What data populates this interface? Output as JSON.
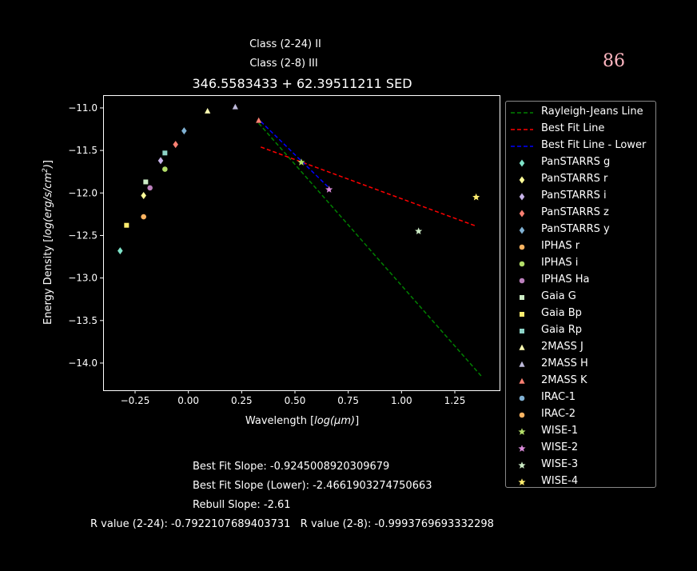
{
  "header": {
    "class_24": "Class (2-24) II",
    "class_28": "Class (2-8) III",
    "title": "346.5583433 + 62.39511211 SED",
    "badge": "86"
  },
  "footer": {
    "best_fit_slope": "Best Fit Slope: -0.9245008920309679",
    "best_fit_slope_lower": "Best Fit Slope (Lower): -2.4661903274750663",
    "rebull_slope": "Rebull Slope: -2.61",
    "r_values": "R value (2-24): -0.7922107689403731   R value (2-8): -0.9993769693332298"
  },
  "chart_data": {
    "type": "scatter",
    "xlabel": "Wavelength [log(μm)]",
    "ylabel": "Energy Density [log(erg/s/cm²)]",
    "xlim": [
      -0.4,
      1.46
    ],
    "ylim": [
      -14.32,
      -10.85
    ],
    "xticks": [
      -0.25,
      0.0,
      0.25,
      0.5,
      0.75,
      1.0,
      1.25
    ],
    "xtick_labels": [
      "−0.25",
      "0.00",
      "0.25",
      "0.50",
      "0.75",
      "1.00",
      "1.25"
    ],
    "yticks": [
      -11.0,
      -11.5,
      -12.0,
      -12.5,
      -13.0,
      -13.5,
      -14.0
    ],
    "ytick_labels": [
      "−11.0",
      "−11.5",
      "−12.0",
      "−12.5",
      "−13.0",
      "−13.5",
      "−14.0"
    ],
    "grid": false,
    "legend_position": "outside-right",
    "lines": [
      {
        "name": "Rayleigh-Jeans Line",
        "color": "#008000",
        "dash": true,
        "x": [
          0.33,
          1.38
        ],
        "y": [
          -11.18,
          -14.17
        ]
      },
      {
        "name": "Best Fit Line",
        "color": "#ff0000",
        "dash": true,
        "x": [
          0.34,
          1.35
        ],
        "y": [
          -11.46,
          -12.39
        ]
      },
      {
        "name": "Best Fit Line - Lower",
        "color": "#0000ff",
        "dash": true,
        "x": [
          0.34,
          0.66
        ],
        "y": [
          -11.16,
          -11.94
        ]
      }
    ],
    "series": [
      {
        "name": "PanSTARRS g",
        "color": "#7fe3c9",
        "marker": "diamond",
        "x": [
          -0.32
        ],
        "y": [
          -12.68
        ]
      },
      {
        "name": "PanSTARRS r",
        "color": "#ffff99",
        "marker": "diamond",
        "x": [
          -0.21
        ],
        "y": [
          -12.03
        ]
      },
      {
        "name": "PanSTARRS i",
        "color": "#c7b3e8",
        "marker": "diamond",
        "x": [
          -0.13
        ],
        "y": [
          -11.62
        ]
      },
      {
        "name": "PanSTARRS z",
        "color": "#fb8072",
        "marker": "diamond",
        "x": [
          -0.06
        ],
        "y": [
          -11.43
        ]
      },
      {
        "name": "PanSTARRS y",
        "color": "#80b1d3",
        "marker": "diamond",
        "x": [
          -0.02
        ],
        "y": [
          -11.27
        ]
      },
      {
        "name": "IPHAS r",
        "color": "#fdb462",
        "marker": "circle",
        "x": [
          -0.21
        ],
        "y": [
          -12.28
        ]
      },
      {
        "name": "IPHAS i",
        "color": "#b3de69",
        "marker": "circle",
        "x": [
          -0.11
        ],
        "y": [
          -11.72
        ]
      },
      {
        "name": "IPHAS Ha",
        "color": "#bc80bd",
        "marker": "circle",
        "x": [
          -0.18
        ],
        "y": [
          -11.94
        ]
      },
      {
        "name": "Gaia G",
        "color": "#ccebc5",
        "marker": "square",
        "x": [
          -0.2
        ],
        "y": [
          -11.87
        ]
      },
      {
        "name": "Gaia Bp",
        "color": "#ffed6f",
        "marker": "square",
        "x": [
          -0.29
        ],
        "y": [
          -12.38
        ]
      },
      {
        "name": "Gaia Rp",
        "color": "#8dd3c7",
        "marker": "square",
        "x": [
          -0.11
        ],
        "y": [
          -11.53
        ]
      },
      {
        "name": "2MASS J",
        "color": "#ffffb3",
        "marker": "triangle",
        "x": [
          0.09
        ],
        "y": [
          -11.04
        ]
      },
      {
        "name": "2MASS H",
        "color": "#bebada",
        "marker": "triangle",
        "x": [
          0.22
        ],
        "y": [
          -10.99
        ]
      },
      {
        "name": "2MASS K",
        "color": "#fb8072",
        "marker": "triangle",
        "x": [
          0.33
        ],
        "y": [
          -11.15
        ]
      },
      {
        "name": "IRAC-1",
        "color": "#80b1d3",
        "marker": "circle",
        "x": [],
        "y": []
      },
      {
        "name": "IRAC-2",
        "color": "#fdb462",
        "marker": "circle",
        "x": [],
        "y": []
      },
      {
        "name": "WISE-1",
        "color": "#b3de69",
        "marker": "star",
        "x": [
          0.53
        ],
        "y": [
          -11.64
        ]
      },
      {
        "name": "WISE-2",
        "color": "#d98ad9",
        "marker": "star",
        "x": [
          0.66
        ],
        "y": [
          -11.96
        ]
      },
      {
        "name": "WISE-3",
        "color": "#ccebc5",
        "marker": "star",
        "x": [
          1.08
        ],
        "y": [
          -12.45
        ]
      },
      {
        "name": "WISE-4",
        "color": "#ffed6f",
        "marker": "star",
        "x": [
          1.35
        ],
        "y": [
          -12.05
        ]
      }
    ]
  }
}
